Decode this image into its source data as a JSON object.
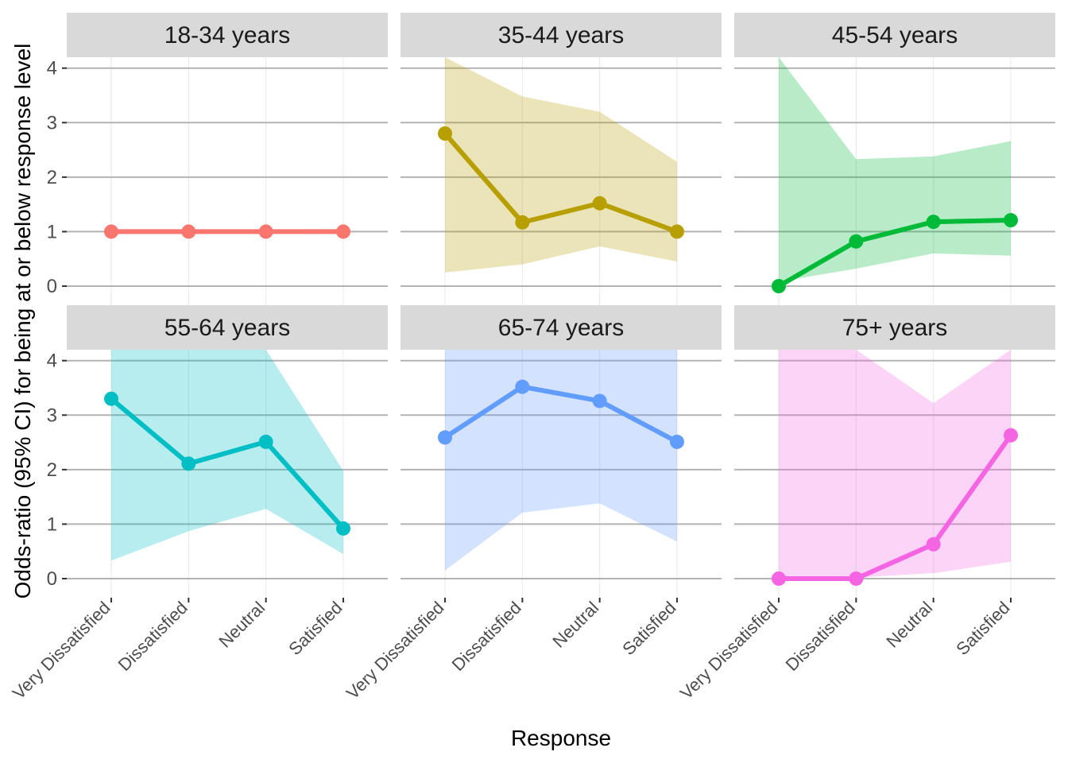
{
  "chart_data": {
    "type": "line",
    "xlabel": "Response",
    "ylabel": "Odds-ratio (95% CI) for being at or below response level",
    "categories": [
      "Very Dissatisfied",
      "Dissatisfied",
      "Neutral",
      "Satisfied"
    ],
    "ylim": [
      -0.35,
      4.2
    ],
    "yticks": [
      0,
      1,
      2,
      3,
      4
    ],
    "grid": true,
    "legend": "none",
    "panels": [
      {
        "label": "18-34 years",
        "color": "#F8766D",
        "values": [
          1,
          1,
          1,
          1
        ],
        "lower": [
          1,
          1,
          1,
          1
        ],
        "upper": [
          1,
          1,
          1,
          1
        ]
      },
      {
        "label": "35-44 years",
        "color": "#B79F00",
        "values": [
          2.8,
          1.17,
          1.52,
          1.0
        ],
        "lower": [
          0.25,
          0.4,
          0.73,
          0.45
        ],
        "upper": [
          4.2,
          3.48,
          3.2,
          2.28
        ]
      },
      {
        "label": "45-54 years",
        "color": "#00BA38",
        "values": [
          0.0,
          0.82,
          1.18,
          1.21
        ],
        "lower": [
          0.08,
          0.32,
          0.6,
          0.56
        ],
        "upper": [
          4.2,
          2.33,
          2.38,
          2.66
        ]
      },
      {
        "label": "55-64 years",
        "color": "#00BFC4",
        "values": [
          3.3,
          2.11,
          2.51,
          0.92
        ],
        "lower": [
          0.33,
          0.87,
          1.28,
          0.45
        ],
        "upper": [
          4.2,
          4.2,
          4.2,
          1.98
        ]
      },
      {
        "label": "65-74 years",
        "color": "#619CFF",
        "values": [
          2.59,
          3.52,
          3.26,
          2.51
        ],
        "lower": [
          0.15,
          1.21,
          1.38,
          0.68
        ],
        "upper": [
          4.2,
          4.2,
          4.2,
          4.2
        ]
      },
      {
        "label": "75+ years",
        "color": "#F564E3",
        "values": [
          0.0,
          0.0,
          0.63,
          2.63
        ],
        "lower": [
          0.02,
          0.02,
          0.1,
          0.31
        ],
        "upper": [
          4.2,
          4.2,
          3.22,
          4.2
        ]
      }
    ]
  }
}
